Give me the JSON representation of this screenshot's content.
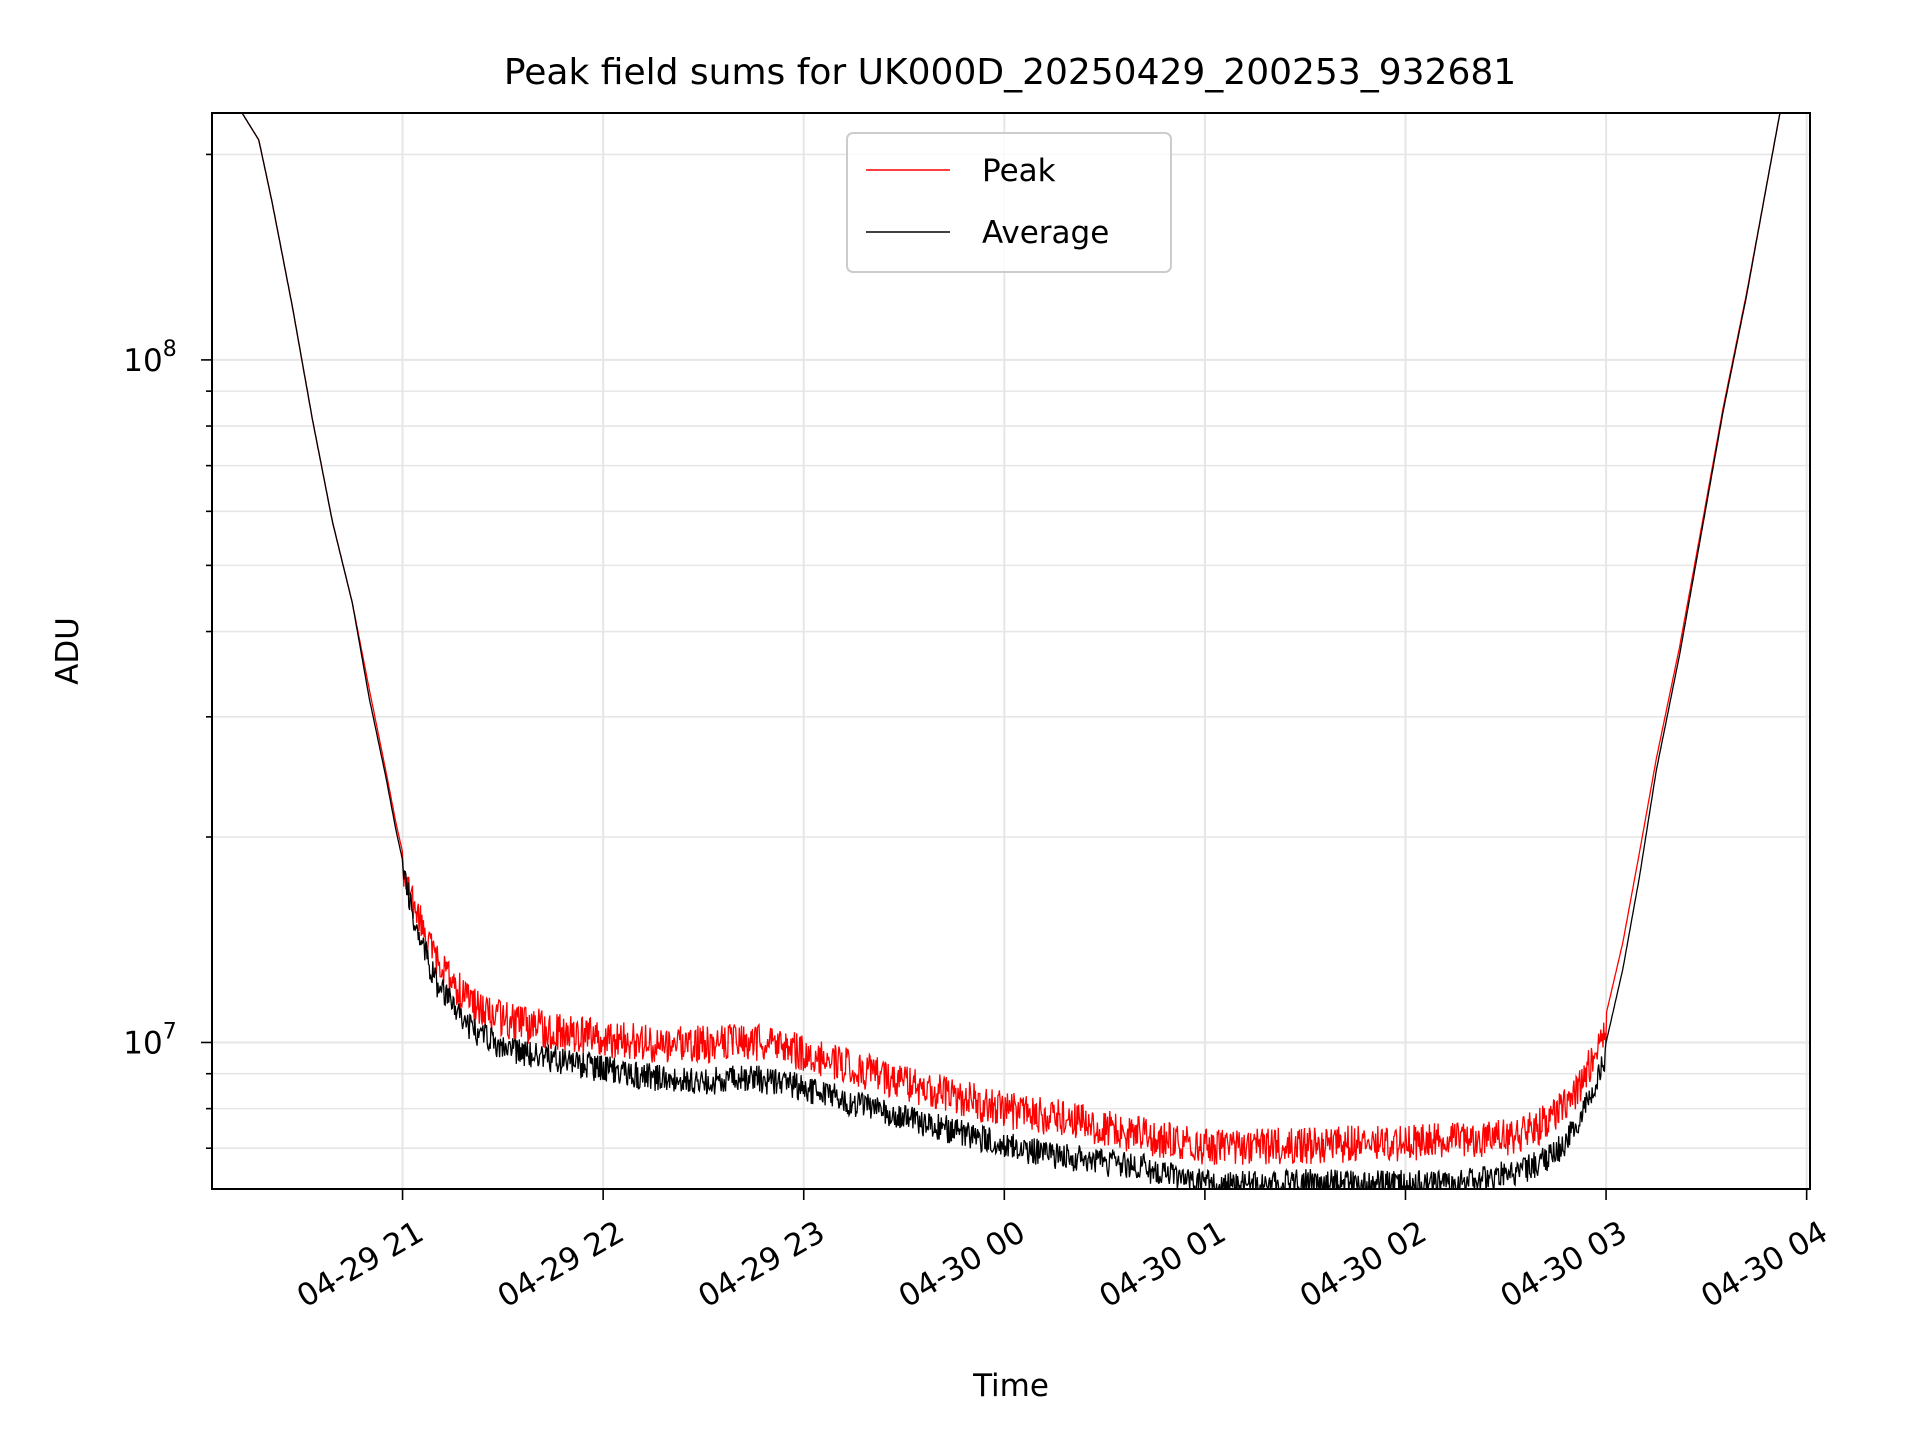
{
  "chart_data": {
    "type": "line",
    "title": "Peak field sums for UK000D_20250429_200253_932681",
    "xlabel": "Time",
    "ylabel": "ADU",
    "y_scale": "log",
    "ylim": [
      6100000,
      230000000
    ],
    "xlim": [
      "2025-04-29 20:03",
      "2025-04-30 04:01"
    ],
    "grid": true,
    "legend_position": "upper center",
    "x_ticks": [
      {
        "value": "2025-04-29 21:00",
        "label": "04-29 21"
      },
      {
        "value": "2025-04-29 22:00",
        "label": "04-29 22"
      },
      {
        "value": "2025-04-29 23:00",
        "label": "04-29 23"
      },
      {
        "value": "2025-04-30 00:00",
        "label": "04-30 00"
      },
      {
        "value": "2025-04-30 01:00",
        "label": "04-30 01"
      },
      {
        "value": "2025-04-30 02:00",
        "label": "04-30 02"
      },
      {
        "value": "2025-04-30 03:00",
        "label": "04-30 03"
      },
      {
        "value": "2025-04-30 04:00",
        "label": "04-30 04"
      }
    ],
    "y_ticks": [
      {
        "value": 10000000,
        "base": "10",
        "exp": "7"
      },
      {
        "value": 100000000,
        "base": "10",
        "exp": "8"
      }
    ],
    "series": [
      {
        "name": "Peak",
        "color": "#ff0000",
        "points": [
          [
            "2025-04-29 20:03",
            230000000
          ],
          [
            "2025-04-29 20:12",
            230000000
          ],
          [
            "2025-04-29 20:17",
            210000000
          ],
          [
            "2025-04-29 20:21",
            170000000
          ],
          [
            "2025-04-29 20:27",
            120000000
          ],
          [
            "2025-04-29 20:33",
            82000000
          ],
          [
            "2025-04-29 20:39",
            58000000
          ],
          [
            "2025-04-29 20:45",
            44000000
          ],
          [
            "2025-04-29 20:50",
            33000000
          ],
          [
            "2025-04-29 20:55",
            25000000
          ],
          [
            "2025-04-29 20:58",
            21000000
          ],
          [
            "2025-04-29 21:00",
            19000000
          ],
          [
            "2025-04-29 21:04",
            16500000
          ],
          [
            "2025-04-29 21:10",
            14000000
          ],
          [
            "2025-04-29 21:20",
            12200000
          ],
          [
            "2025-04-29 21:30",
            11500000
          ],
          [
            "2025-04-29 21:45",
            11100000
          ],
          [
            "2025-04-29 22:00",
            10800000
          ],
          [
            "2025-04-29 22:15",
            10600000
          ],
          [
            "2025-04-29 22:30",
            10600000
          ],
          [
            "2025-04-29 22:45",
            10700000
          ],
          [
            "2025-04-29 23:00",
            10300000
          ],
          [
            "2025-04-29 23:20",
            9600000
          ],
          [
            "2025-04-29 23:40",
            9000000
          ],
          [
            "2025-04-30 00:00",
            8500000
          ],
          [
            "2025-04-30 00:20",
            8200000
          ],
          [
            "2025-04-30 00:40",
            7800000
          ],
          [
            "2025-04-30 01:00",
            7500000
          ],
          [
            "2025-04-30 01:20",
            7500000
          ],
          [
            "2025-04-30 01:40",
            7550000
          ],
          [
            "2025-04-30 02:00",
            7600000
          ],
          [
            "2025-04-30 02:20",
            7650000
          ],
          [
            "2025-04-30 02:35",
            7800000
          ],
          [
            "2025-04-30 02:45",
            8300000
          ],
          [
            "2025-04-30 02:52",
            9200000
          ],
          [
            "2025-04-30 03:00",
            11000000
          ],
          [
            "2025-04-30 03:05",
            14000000
          ],
          [
            "2025-04-30 03:10",
            19000000
          ],
          [
            "2025-04-30 03:15",
            26000000
          ],
          [
            "2025-04-30 03:22",
            38000000
          ],
          [
            "2025-04-30 03:28",
            55000000
          ],
          [
            "2025-04-30 03:35",
            85000000
          ],
          [
            "2025-04-30 03:42",
            125000000
          ],
          [
            "2025-04-30 03:48",
            180000000
          ],
          [
            "2025-04-30 03:52",
            230000000
          ],
          [
            "2025-04-30 04:01",
            230000000
          ]
        ]
      },
      {
        "name": "Average",
        "color": "#000000",
        "points": [
          [
            "2025-04-29 20:03",
            230000000
          ],
          [
            "2025-04-29 20:12",
            230000000
          ],
          [
            "2025-04-29 20:17",
            210000000
          ],
          [
            "2025-04-29 20:21",
            170000000
          ],
          [
            "2025-04-29 20:27",
            120000000
          ],
          [
            "2025-04-29 20:33",
            82000000
          ],
          [
            "2025-04-29 20:39",
            58000000
          ],
          [
            "2025-04-29 20:45",
            44000000
          ],
          [
            "2025-04-29 20:50",
            32000000
          ],
          [
            "2025-04-29 20:55",
            24500000
          ],
          [
            "2025-04-29 20:58",
            20500000
          ],
          [
            "2025-04-29 21:00",
            18500000
          ],
          [
            "2025-04-29 21:04",
            15500000
          ],
          [
            "2025-04-29 21:10",
            12800000
          ],
          [
            "2025-04-29 21:20",
            11000000
          ],
          [
            "2025-04-29 21:30",
            10300000
          ],
          [
            "2025-04-29 21:45",
            9900000
          ],
          [
            "2025-04-29 22:00",
            9600000
          ],
          [
            "2025-04-29 22:15",
            9300000
          ],
          [
            "2025-04-29 22:30",
            9200000
          ],
          [
            "2025-04-29 22:45",
            9300000
          ],
          [
            "2025-04-29 23:00",
            9000000
          ],
          [
            "2025-04-29 23:20",
            8400000
          ],
          [
            "2025-04-29 23:40",
            7900000
          ],
          [
            "2025-04-30 00:00",
            7400000
          ],
          [
            "2025-04-30 00:20",
            7100000
          ],
          [
            "2025-04-30 00:40",
            6900000
          ],
          [
            "2025-04-30 01:00",
            6500000
          ],
          [
            "2025-04-30 01:20",
            6500000
          ],
          [
            "2025-04-30 01:40",
            6550000
          ],
          [
            "2025-04-30 02:00",
            6500000
          ],
          [
            "2025-04-30 02:20",
            6550000
          ],
          [
            "2025-04-30 02:35",
            6800000
          ],
          [
            "2025-04-30 02:45",
            7200000
          ],
          [
            "2025-04-30 02:52",
            8000000
          ],
          [
            "2025-04-30 03:00",
            10000000
          ],
          [
            "2025-04-30 03:05",
            12800000
          ],
          [
            "2025-04-30 03:10",
            17500000
          ],
          [
            "2025-04-30 03:15",
            25000000
          ],
          [
            "2025-04-30 03:22",
            37000000
          ],
          [
            "2025-04-30 03:28",
            54000000
          ],
          [
            "2025-04-30 03:35",
            84000000
          ],
          [
            "2025-04-30 03:42",
            124000000
          ],
          [
            "2025-04-30 03:48",
            180000000
          ],
          [
            "2025-04-30 03:52",
            230000000
          ],
          [
            "2025-04-30 04:01",
            230000000
          ]
        ]
      }
    ]
  }
}
